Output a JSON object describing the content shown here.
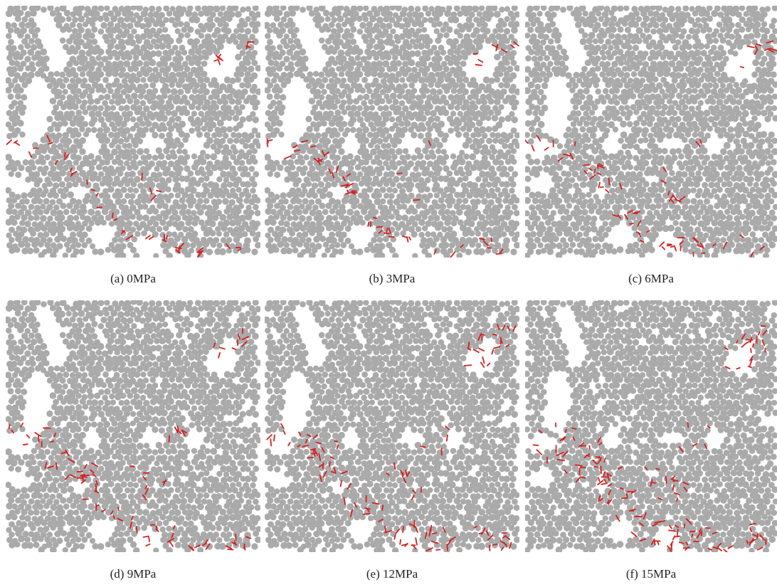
{
  "colors": {
    "particle": "#aaaaaa",
    "crack": "#d42020",
    "pore": "#ffffff"
  },
  "panels": [
    {
      "caption": "(a) 0MPa",
      "cracks": 50
    },
    {
      "caption": "(b) 3MPa",
      "cracks": 60
    },
    {
      "caption": "(c) 6MPa",
      "cracks": 75
    },
    {
      "caption": "(d) 9MPa",
      "cracks": 95
    },
    {
      "caption": "(e) 12MPa",
      "cracks": 120
    },
    {
      "caption": "(f) 15MPa",
      "cracks": 165
    }
  ]
}
